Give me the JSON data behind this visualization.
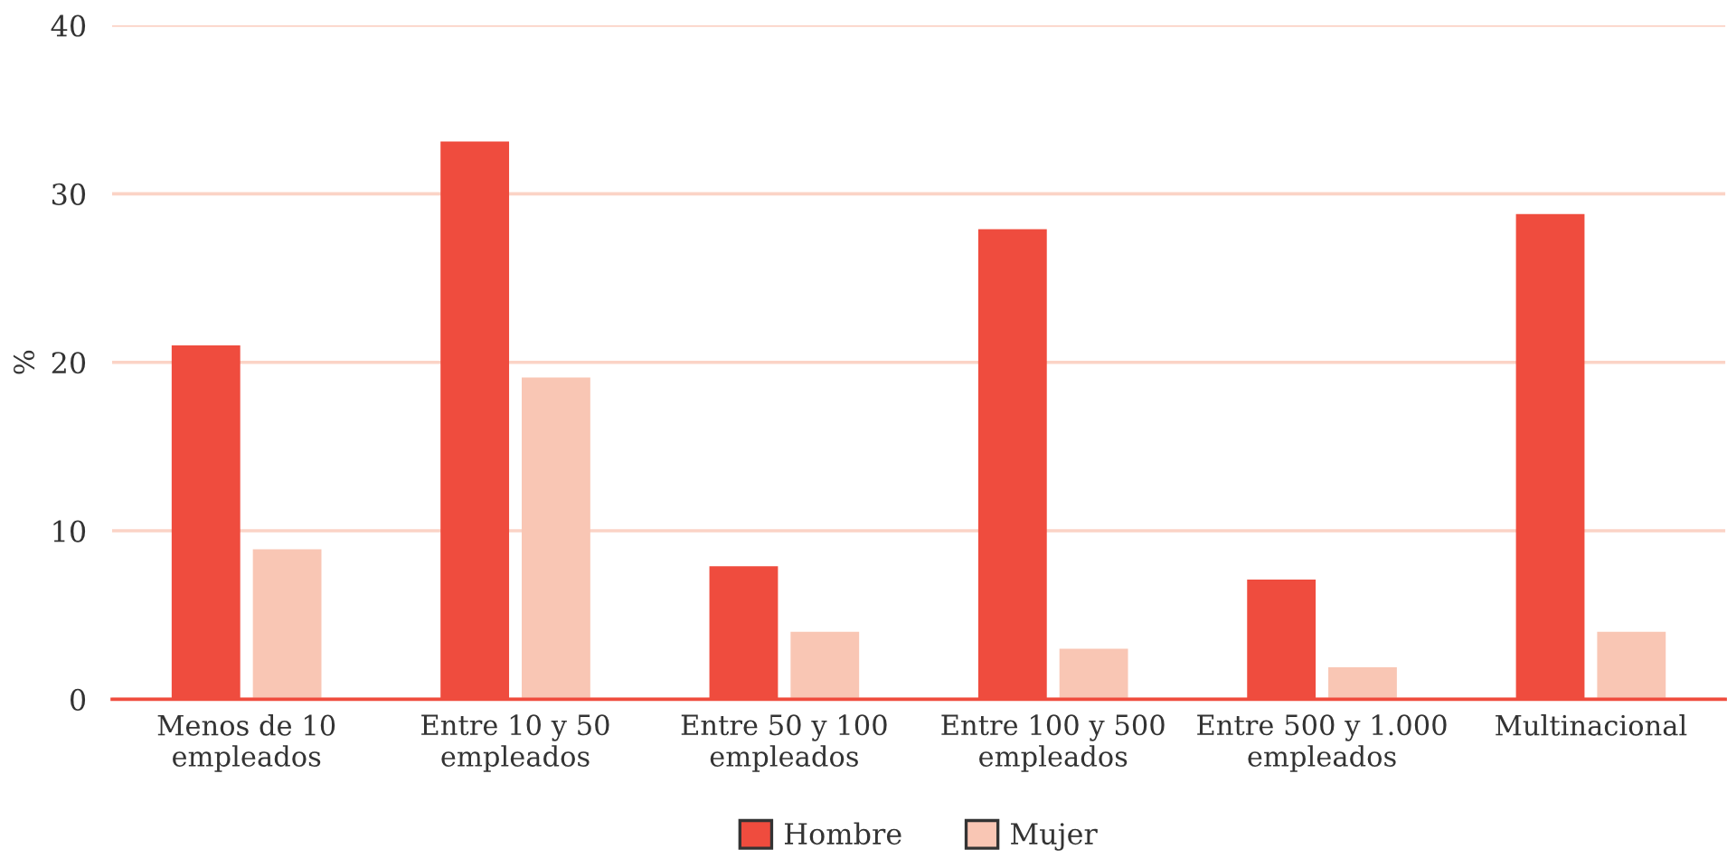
{
  "chart_data": {
    "type": "bar",
    "ylabel": "%",
    "categories": [
      "Menos de 10\nempleados",
      "Entre 10 y 50\nempleados",
      "Entre 50 y 100\nempleados",
      "Entre 100 y 500\nempleados",
      "Entre 500 y 1.000\nempleados",
      "Multinacional"
    ],
    "series": [
      {
        "name": "Hombre",
        "color": "#ef4c3e",
        "values": [
          21.0,
          33.1,
          7.9,
          27.9,
          7.1,
          28.8
        ]
      },
      {
        "name": "Mujer",
        "color": "#f9c6b4",
        "values": [
          8.9,
          19.1,
          4.0,
          3.0,
          1.9,
          4.0
        ]
      }
    ],
    "ylim": [
      0,
      40
    ],
    "yticks": [
      0,
      10,
      20,
      30,
      40
    ],
    "grid": "y",
    "legend": "bottom"
  }
}
